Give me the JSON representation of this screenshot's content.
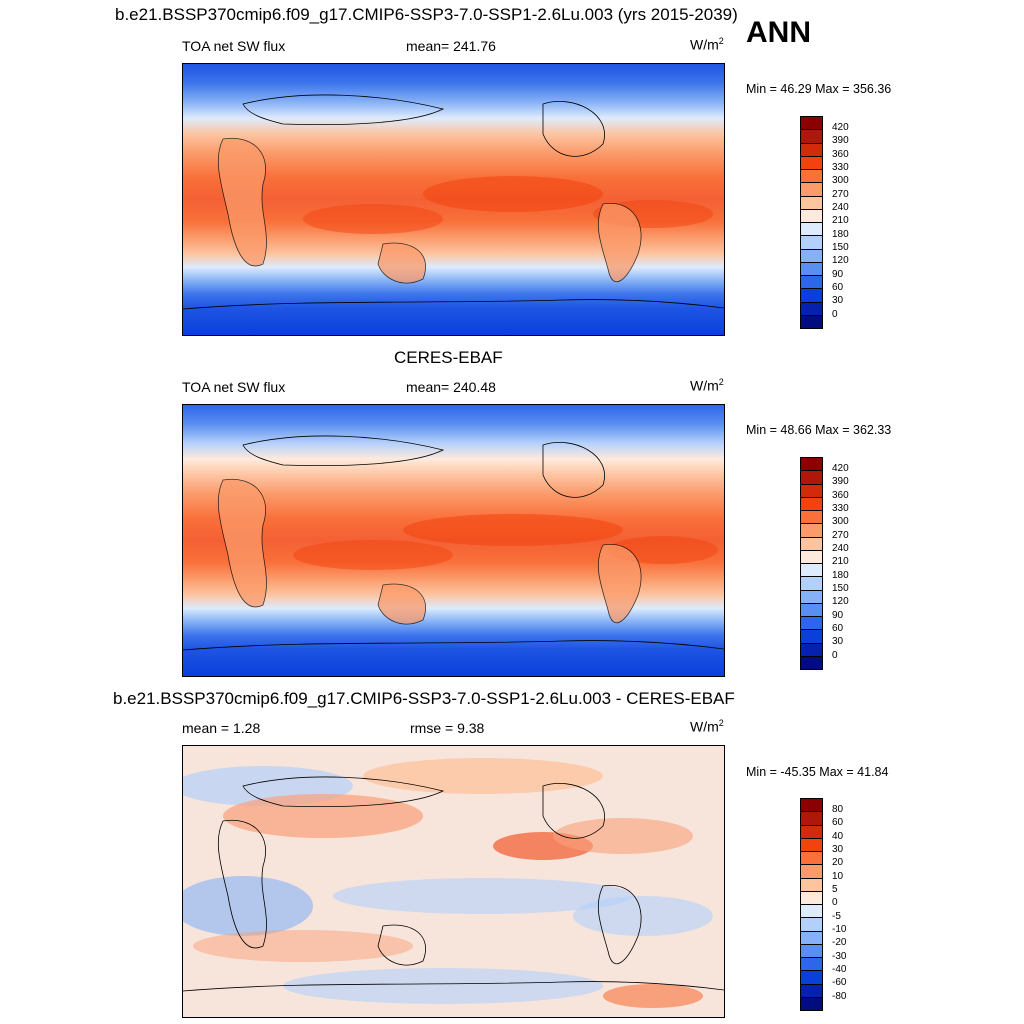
{
  "figure": {
    "main_title": "b.e21.BSSP370cmip6.f09_g17.CMIP6-SSP3-7.0-SSP1-2.6Lu.003 (yrs 2015-2039)",
    "season": "ANN"
  },
  "panels": [
    {
      "id": "model",
      "section_title": "",
      "left_label": "TOA net SW flux",
      "center_label": "mean= 241.76",
      "units": "W/m",
      "units_sup": "2",
      "min_max": "Min =  46.29 Max = 356.36",
      "colorbar_levels": [
        "420",
        "390",
        "360",
        "330",
        "300",
        "270",
        "240",
        "210",
        "180",
        "150",
        "120",
        "90",
        "60",
        "30",
        "0"
      ]
    },
    {
      "id": "obs",
      "section_title": "CERES-EBAF",
      "left_label": "TOA net SW flux",
      "center_label": "mean= 240.48",
      "units": "W/m",
      "units_sup": "2",
      "min_max": "Min =  48.66 Max = 362.33",
      "colorbar_levels": [
        "420",
        "390",
        "360",
        "330",
        "300",
        "270",
        "240",
        "210",
        "180",
        "150",
        "120",
        "90",
        "60",
        "30",
        "0"
      ]
    },
    {
      "id": "diff",
      "section_title": "b.e21.BSSP370cmip6.f09_g17.CMIP6-SSP3-7.0-SSP1-2.6Lu.003 - CERES-EBAF",
      "left_label": "mean =   1.28",
      "center_label": "rmse =   9.38",
      "units": "W/m",
      "units_sup": "2",
      "min_max": "Min = -45.35 Max =  41.84",
      "colorbar_levels": [
        "80",
        "60",
        "40",
        "30",
        "20",
        "10",
        "5",
        "0",
        "-5",
        "-10",
        "-20",
        "-30",
        "-40",
        "-60",
        "-80"
      ]
    }
  ],
  "colors": {
    "palette_top_to_bottom": [
      "#8b0000",
      "#b0170b",
      "#d22a0c",
      "#f2430f",
      "#f9703a",
      "#fb9a6a",
      "#fdc4a0",
      "#feeadd",
      "#ddebfd",
      "#b3d0fb",
      "#86b1f6",
      "#5a8ef0",
      "#2e66ea",
      "#0b3fdc",
      "#0521ae",
      "#000c80"
    ]
  }
}
